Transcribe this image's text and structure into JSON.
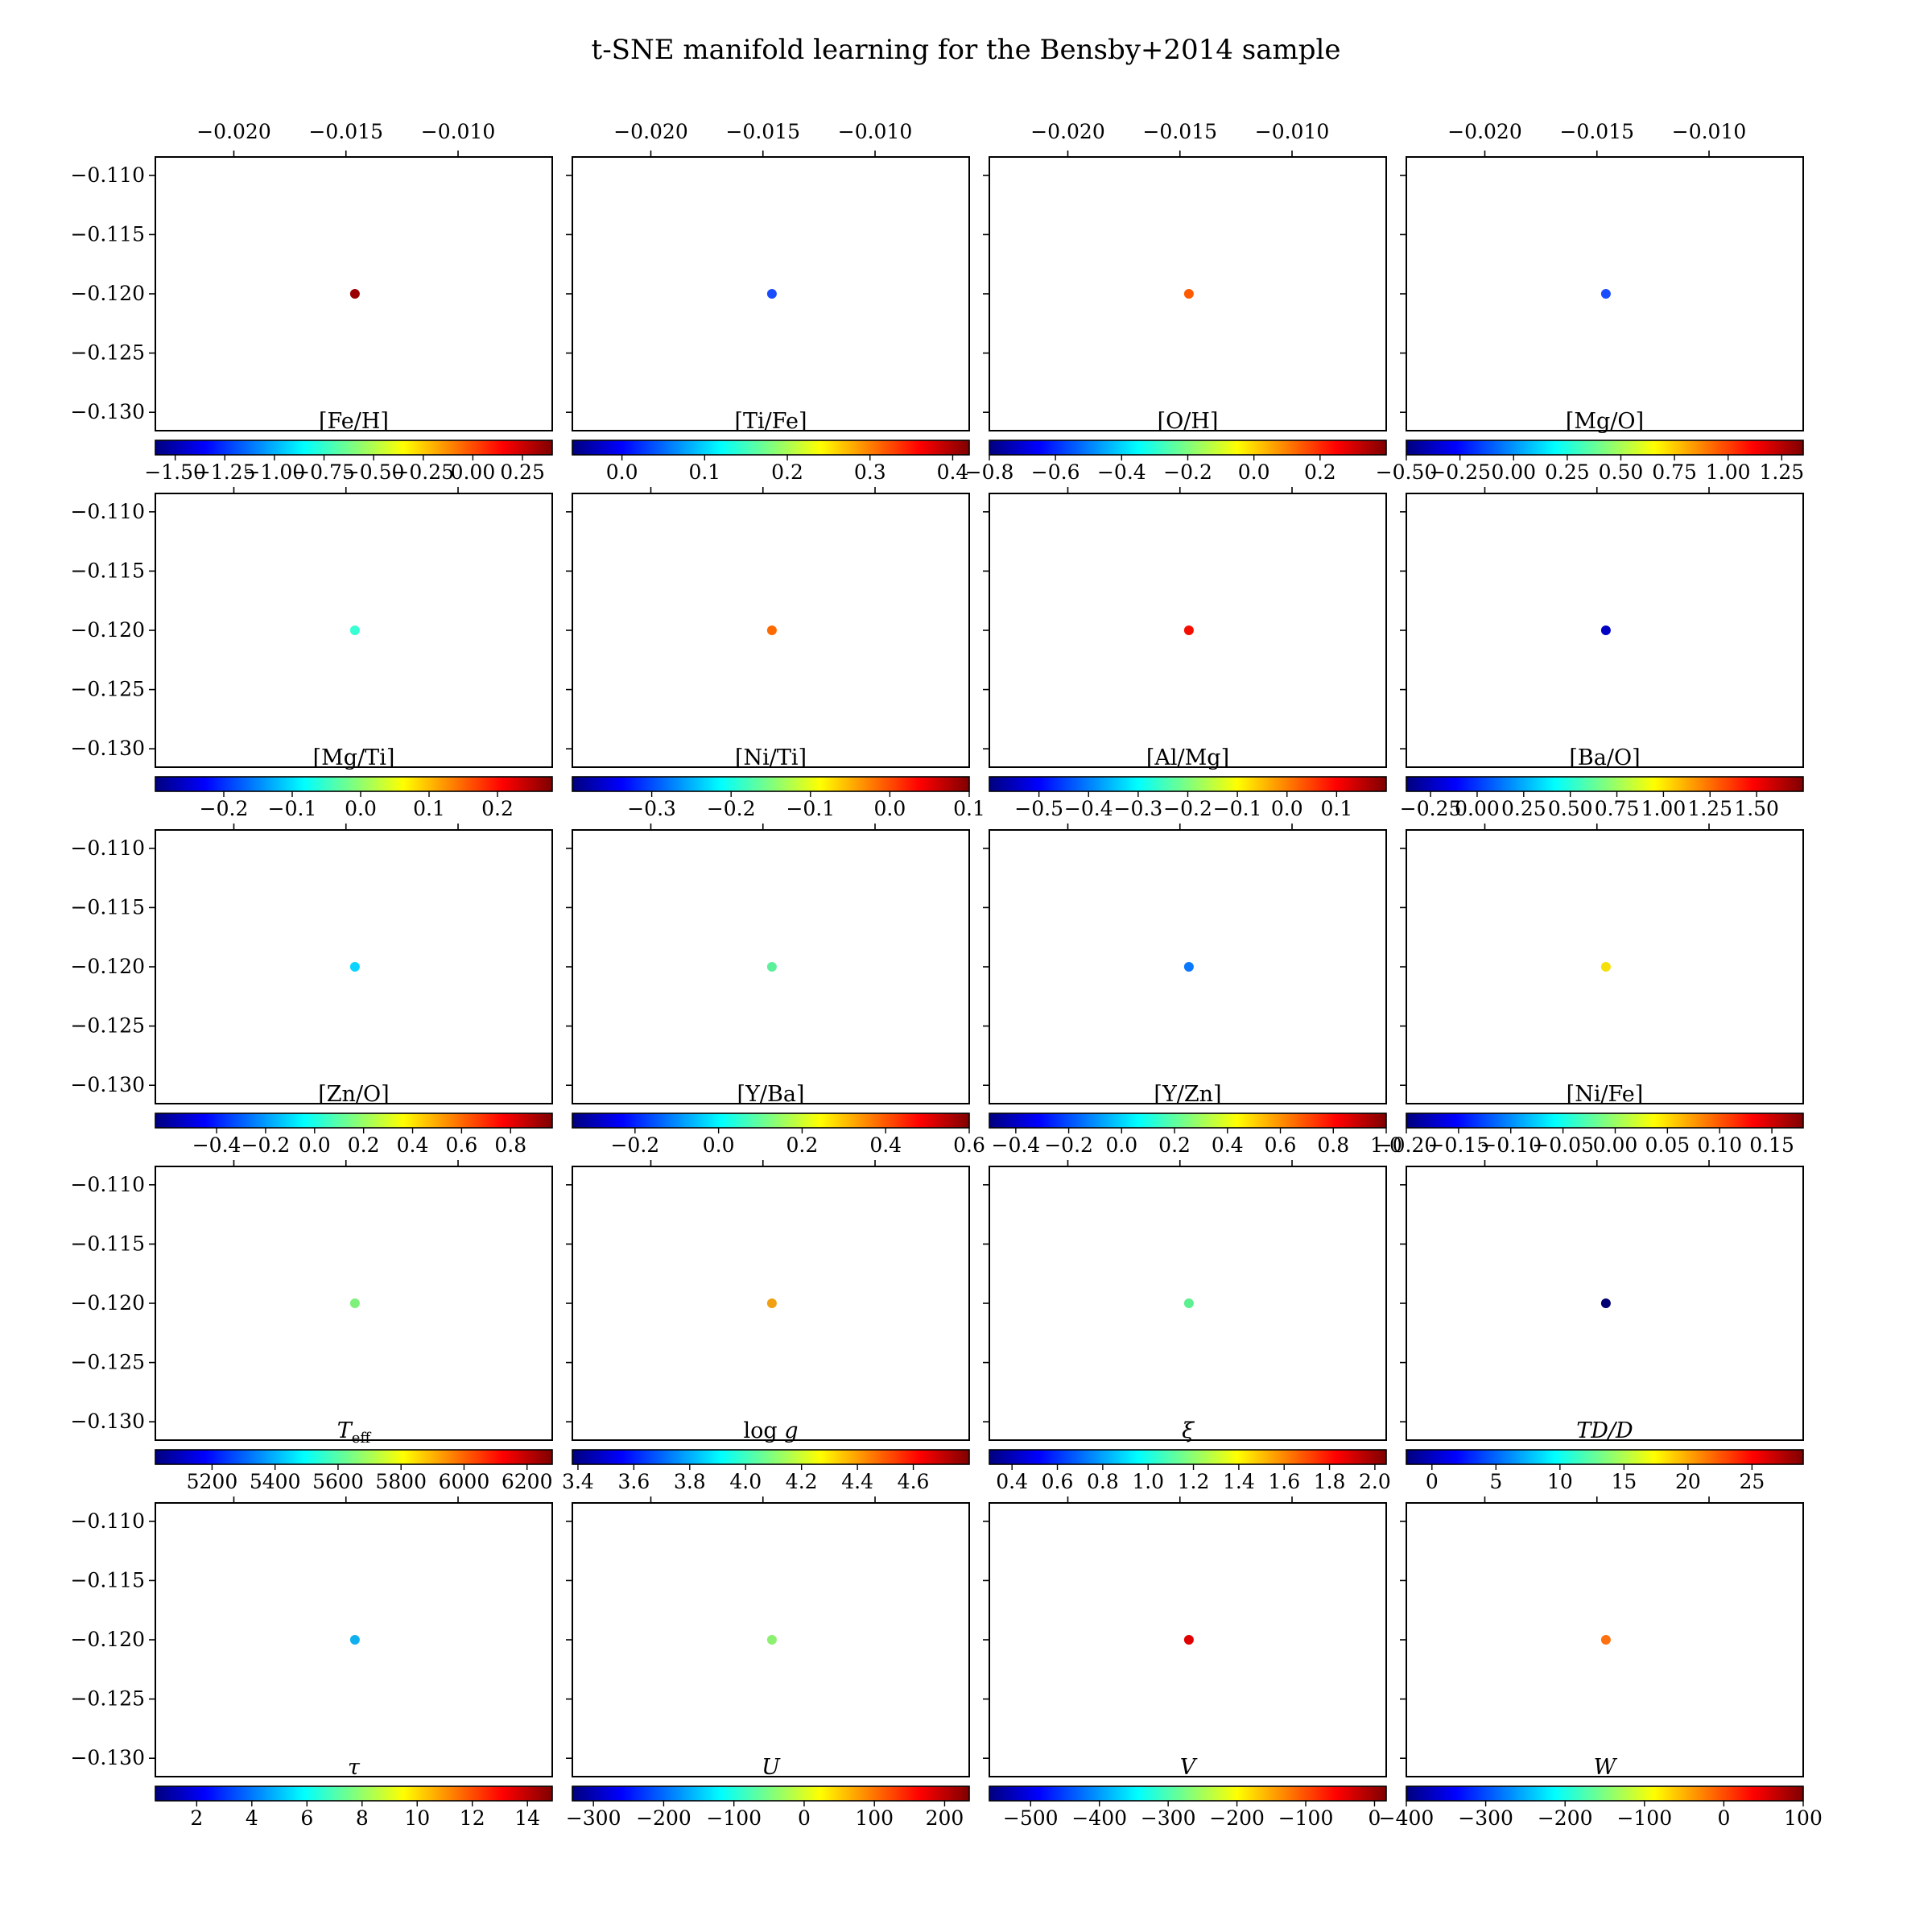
{
  "title": "t-SNE manifold learning for the Bensby+2014 sample",
  "colors": {
    "jet": [
      "#00007f",
      "#0000ff",
      "#007fff",
      "#00ffff",
      "#7fff7f",
      "#ffff00",
      "#ff7f00",
      "#ff0000",
      "#7f0000"
    ],
    "frame": "#000000"
  },
  "chart_data": {
    "type": "scatter",
    "layout": "5x4 grid of panels",
    "colormap": "jet",
    "x_ticks": [
      "−0.020",
      "−0.015",
      "−0.010"
    ],
    "x_tick_values": [
      -0.02,
      -0.015,
      -0.01
    ],
    "x_tick_position": "top (first row only)",
    "xlim": [
      -0.0235,
      -0.0058
    ],
    "y_ticks": [
      "−0.110",
      "−0.115",
      "−0.120",
      "−0.125",
      "−0.130"
    ],
    "y_tick_values": [
      -0.11,
      -0.115,
      -0.12,
      -0.125,
      -0.13
    ],
    "ylim": [
      -0.13155,
      -0.10845
    ],
    "grid": false,
    "panels": [
      {
        "label": "[Fe/H]",
        "point": {
          "x": -0.0146,
          "y": -0.12
        },
        "color": "#990000",
        "cbar_range": [
          -1.6,
          0.4
        ],
        "cbar_ticks": [
          "−1.50",
          "−1.25",
          "−1.00",
          "−0.75",
          "−0.50",
          "−0.25",
          "0.00",
          "0.25"
        ],
        "cbar_tick_values": [
          -1.5,
          -1.25,
          -1.0,
          -0.75,
          -0.5,
          -0.25,
          0.0,
          0.25
        ]
      },
      {
        "label": "[Ti/Fe]",
        "point": {
          "x": -0.0146,
          "y": -0.12
        },
        "color": "#1a4cff",
        "cbar_range": [
          -0.06,
          0.42
        ],
        "cbar_ticks": [
          "0.0",
          "0.1",
          "0.2",
          "0.3",
          "0.4"
        ],
        "cbar_tick_values": [
          0.0,
          0.1,
          0.2,
          0.3,
          0.4
        ]
      },
      {
        "label": "[O/H]",
        "point": {
          "x": -0.0146,
          "y": -0.12
        },
        "color": "#ff5a00",
        "cbar_range": [
          -0.8,
          0.4
        ],
        "cbar_ticks": [
          "−0.8",
          "−0.6",
          "−0.4",
          "−0.2",
          "0.0",
          "0.2"
        ],
        "cbar_tick_values": [
          -0.8,
          -0.6,
          -0.4,
          -0.2,
          0.0,
          0.2
        ]
      },
      {
        "label": "[Mg/O]",
        "point": {
          "x": -0.0146,
          "y": -0.12
        },
        "color": "#1a4cff",
        "cbar_range": [
          -0.5,
          1.35
        ],
        "cbar_ticks": [
          "−0.50",
          "−0.25",
          "0.00",
          "0.25",
          "0.50",
          "0.75",
          "1.00",
          "1.25"
        ],
        "cbar_tick_values": [
          -0.5,
          -0.25,
          0.0,
          0.25,
          0.5,
          0.75,
          1.0,
          1.25
        ]
      },
      {
        "label": "[Mg/Ti]",
        "point": {
          "x": -0.0146,
          "y": -0.12
        },
        "color": "#38ffd4",
        "cbar_range": [
          -0.3,
          0.28
        ],
        "cbar_ticks": [
          "−0.2",
          "−0.1",
          "0.0",
          "0.1",
          "0.2"
        ],
        "cbar_tick_values": [
          -0.2,
          -0.1,
          0.0,
          0.1,
          0.2
        ]
      },
      {
        "label": "[Ni/Ti]",
        "point": {
          "x": -0.0146,
          "y": -0.12
        },
        "color": "#ff6a00",
        "cbar_range": [
          -0.4,
          0.1
        ],
        "cbar_ticks": [
          "−0.3",
          "−0.2",
          "−0.1",
          "0.0",
          "0.1"
        ],
        "cbar_tick_values": [
          -0.3,
          -0.2,
          -0.1,
          0.0,
          0.1
        ]
      },
      {
        "label": "[Al/Mg]",
        "point": {
          "x": -0.0146,
          "y": -0.12
        },
        "color": "#f50e00",
        "cbar_range": [
          -0.6,
          0.2
        ],
        "cbar_ticks": [
          "−0.5",
          "−0.4",
          "−0.3",
          "−0.2",
          "−0.1",
          "0.0",
          "0.1"
        ],
        "cbar_tick_values": [
          -0.5,
          -0.4,
          -0.3,
          -0.2,
          -0.1,
          0.0,
          0.1
        ]
      },
      {
        "label": "[Ba/O]",
        "point": {
          "x": -0.0146,
          "y": -0.12
        },
        "color": "#0000c4",
        "cbar_range": [
          -0.38,
          1.75
        ],
        "cbar_ticks": [
          "−0.25",
          "0.00",
          "0.25",
          "0.50",
          "0.75",
          "1.00",
          "1.25",
          "1.50"
        ],
        "cbar_tick_values": [
          -0.25,
          0.0,
          0.25,
          0.5,
          0.75,
          1.0,
          1.25,
          1.5
        ]
      },
      {
        "label": "[Zn/O]",
        "point": {
          "x": -0.0146,
          "y": -0.12
        },
        "color": "#0ad4ff",
        "cbar_range": [
          -0.65,
          0.97
        ],
        "cbar_ticks": [
          "−0.4",
          "−0.2",
          "0.0",
          "0.2",
          "0.4",
          "0.6",
          "0.8"
        ],
        "cbar_tick_values": [
          -0.4,
          -0.2,
          0.0,
          0.2,
          0.4,
          0.6,
          0.8
        ]
      },
      {
        "label": "[Y/Ba]",
        "point": {
          "x": -0.0146,
          "y": -0.12
        },
        "color": "#5cf09a",
        "cbar_range": [
          -0.35,
          0.6
        ],
        "cbar_ticks": [
          "−0.2",
          "0.0",
          "0.2",
          "0.4",
          "0.6"
        ],
        "cbar_tick_values": [
          -0.2,
          0.0,
          0.2,
          0.4,
          0.6
        ]
      },
      {
        "label": "[Y/Zn]",
        "point": {
          "x": -0.0146,
          "y": -0.12
        },
        "color": "#0a78ff",
        "cbar_range": [
          -0.5,
          1.0
        ],
        "cbar_ticks": [
          "−0.4",
          "−0.2",
          "0.0",
          "0.2",
          "0.4",
          "0.6",
          "0.8",
          "1.0"
        ],
        "cbar_tick_values": [
          -0.4,
          -0.2,
          0.0,
          0.2,
          0.4,
          0.6,
          0.8,
          1.0
        ]
      },
      {
        "label": "[Ni/Fe]",
        "point": {
          "x": -0.0146,
          "y": -0.12
        },
        "color": "#f5e00a",
        "cbar_range": [
          -0.2,
          0.18
        ],
        "cbar_ticks": [
          "−0.20",
          "−0.15",
          "−0.10",
          "−0.05",
          "0.00",
          "0.05",
          "0.10",
          "0.15"
        ],
        "cbar_tick_values": [
          -0.2,
          -0.15,
          -0.1,
          -0.05,
          0.0,
          0.05,
          0.1,
          0.15
        ]
      },
      {
        "label": "T_eff",
        "point": {
          "x": -0.0146,
          "y": -0.12
        },
        "color": "#7ff07a",
        "cbar_range": [
          5020,
          6280
        ],
        "cbar_ticks": [
          "5200",
          "5400",
          "5600",
          "5800",
          "6000",
          "6200"
        ],
        "cbar_tick_values": [
          5200,
          5400,
          5600,
          5800,
          6000,
          6200
        ]
      },
      {
        "label": "log g",
        "point": {
          "x": -0.0146,
          "y": -0.12
        },
        "color": "#f0a010",
        "cbar_range": [
          3.38,
          4.8
        ],
        "cbar_ticks": [
          "3.4",
          "3.6",
          "3.8",
          "4.0",
          "4.2",
          "4.4",
          "4.6"
        ],
        "cbar_tick_values": [
          3.4,
          3.6,
          3.8,
          4.0,
          4.2,
          4.4,
          4.6
        ]
      },
      {
        "label": "ξ",
        "point": {
          "x": -0.0146,
          "y": -0.12
        },
        "color": "#5cf090",
        "cbar_range": [
          0.3,
          2.05
        ],
        "cbar_ticks": [
          "0.4",
          "0.6",
          "0.8",
          "1.0",
          "1.2",
          "1.4",
          "1.6",
          "1.8",
          "2.0"
        ],
        "cbar_tick_values": [
          0.4,
          0.6,
          0.8,
          1.0,
          1.2,
          1.4,
          1.6,
          1.8,
          2.0
        ]
      },
      {
        "label": "TD/D",
        "point": {
          "x": -0.0146,
          "y": -0.12
        },
        "color": "#000070",
        "cbar_range": [
          -2,
          29
        ],
        "cbar_ticks": [
          "0",
          "5",
          "10",
          "15",
          "20",
          "25"
        ],
        "cbar_tick_values": [
          0,
          5,
          10,
          15,
          20,
          25
        ]
      },
      {
        "label": "τ",
        "point": {
          "x": -0.0146,
          "y": -0.12
        },
        "color": "#10b0ee",
        "cbar_range": [
          0.5,
          14.9
        ],
        "cbar_ticks": [
          "2",
          "4",
          "6",
          "8",
          "10",
          "12",
          "14"
        ],
        "cbar_tick_values": [
          2,
          4,
          6,
          8,
          10,
          12,
          14
        ]
      },
      {
        "label": "U",
        "point": {
          "x": -0.0146,
          "y": -0.12
        },
        "color": "#8cf070",
        "cbar_range": [
          -330,
          235
        ],
        "cbar_ticks": [
          "−300",
          "−200",
          "−100",
          "0",
          "100",
          "200"
        ],
        "cbar_tick_values": [
          -300,
          -200,
          -100,
          0,
          100,
          200
        ]
      },
      {
        "label": "V",
        "point": {
          "x": -0.0146,
          "y": -0.12
        },
        "color": "#e00000",
        "cbar_range": [
          -560,
          17
        ],
        "cbar_ticks": [
          "−500",
          "−400",
          "−300",
          "−200",
          "−100",
          "0"
        ],
        "cbar_tick_values": [
          -500,
          -400,
          -300,
          -200,
          -100,
          0
        ]
      },
      {
        "label": "W",
        "point": {
          "x": -0.0146,
          "y": -0.12
        },
        "color": "#ff7010",
        "cbar_range": [
          -400,
          100
        ],
        "cbar_ticks": [
          "−400",
          "−300",
          "−200",
          "−100",
          "0",
          "100"
        ],
        "cbar_tick_values": [
          -400,
          -300,
          -200,
          -100,
          0,
          100
        ]
      }
    ]
  }
}
